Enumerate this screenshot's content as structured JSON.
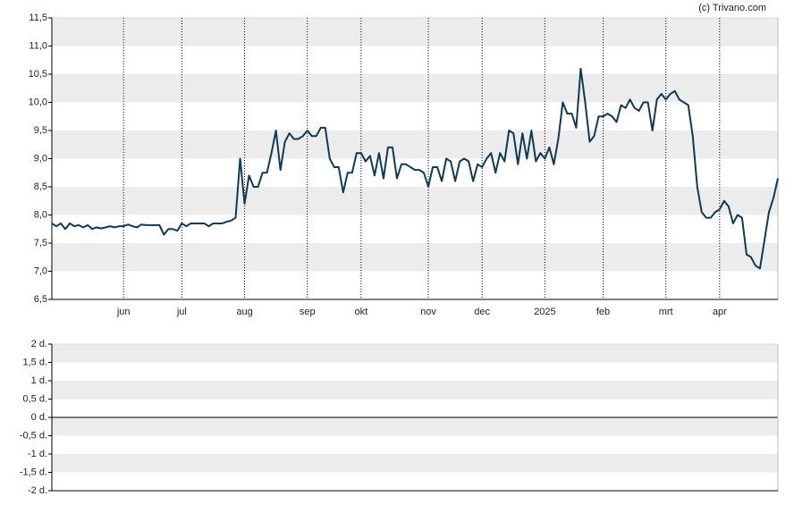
{
  "credit": "(c) Trivano.com",
  "chart_data": [
    {
      "type": "line",
      "color": "#0f3a55",
      "categories": [
        null,
        null,
        null,
        null,
        null,
        null,
        null,
        null,
        null,
        null,
        null,
        null,
        null,
        null,
        null,
        null,
        "jun",
        null,
        null,
        null,
        null,
        null,
        null,
        null,
        null,
        null,
        null,
        null,
        null,
        "jul",
        null,
        null,
        null,
        null,
        null,
        null,
        null,
        null,
        null,
        null,
        null,
        null,
        null,
        "aug",
        null,
        null,
        null,
        null,
        null,
        null,
        null,
        null,
        null,
        null,
        null,
        null,
        null,
        "sep",
        null,
        null,
        null,
        null,
        null,
        null,
        null,
        null,
        null,
        null,
        null,
        "okt",
        null,
        null,
        null,
        null,
        null,
        null,
        null,
        null,
        null,
        null,
        null,
        null,
        null,
        null,
        "nov",
        null,
        null,
        null,
        null,
        null,
        null,
        null,
        null,
        null,
        null,
        null,
        "dec",
        null,
        null,
        null,
        null,
        null,
        null,
        null,
        null,
        null,
        null,
        null,
        null,
        null,
        "2025",
        null,
        null,
        null,
        null,
        null,
        null,
        null,
        null,
        null,
        null,
        null,
        null,
        "feb",
        null,
        null,
        null,
        null,
        null,
        null,
        null,
        null,
        null,
        null,
        null,
        null,
        null,
        "mrt",
        null,
        null,
        null,
        null,
        null,
        null,
        null,
        null,
        null,
        null,
        null,
        "apr",
        null,
        null,
        null,
        null,
        null,
        null,
        null,
        null,
        null,
        null,
        null,
        null,
        null
      ],
      "values": [
        7.85,
        7.8,
        7.85,
        7.75,
        7.85,
        7.8,
        7.82,
        7.78,
        7.82,
        7.75,
        7.78,
        7.76,
        7.78,
        7.8,
        7.78,
        7.8,
        7.8,
        7.83,
        7.8,
        7.78,
        7.83,
        7.82,
        7.82,
        7.82,
        7.82,
        7.65,
        7.75,
        7.75,
        7.72,
        7.85,
        7.8,
        7.85,
        7.85,
        7.85,
        7.85,
        7.8,
        7.85,
        7.85,
        7.85,
        7.88,
        7.9,
        7.95,
        9.0,
        8.2,
        8.7,
        8.5,
        8.5,
        8.75,
        8.75,
        9.1,
        9.5,
        8.8,
        9.3,
        9.45,
        9.35,
        9.35,
        9.4,
        9.5,
        9.4,
        9.4,
        9.55,
        9.55,
        9.0,
        8.85,
        8.85,
        8.4,
        8.75,
        8.75,
        9.1,
        9.1,
        8.95,
        9.05,
        8.7,
        9.1,
        8.65,
        9.2,
        9.2,
        8.65,
        8.9,
        8.9,
        8.85,
        8.8,
        8.8,
        8.75,
        8.5,
        8.85,
        8.85,
        8.6,
        9.0,
        8.95,
        8.6,
        8.95,
        9.0,
        8.95,
        8.6,
        8.9,
        8.85,
        9.0,
        9.1,
        8.75,
        9.1,
        8.95,
        9.5,
        9.45,
        8.9,
        9.45,
        9.0,
        9.5,
        8.95,
        9.1,
        9.0,
        9.2,
        8.9,
        9.35,
        10.0,
        9.8,
        9.8,
        9.55,
        10.6,
        10.0,
        9.3,
        9.4,
        9.75,
        9.75,
        9.8,
        9.75,
        9.65,
        9.95,
        9.9,
        10.05,
        9.9,
        9.85,
        10.0,
        10.0,
        9.5,
        10.05,
        10.15,
        10.05,
        10.15,
        10.2,
        10.05,
        10.0,
        9.95,
        9.4,
        8.5,
        8.05,
        7.95,
        7.95,
        8.05,
        8.1,
        8.25,
        8.15,
        7.85,
        8.0,
        7.95,
        7.3,
        7.25,
        7.1,
        7.05,
        7.55,
        8.05,
        8.3,
        8.65
      ],
      "ylim": [
        6.5,
        11.5
      ],
      "yticks": [
        {
          "value": 6.5,
          "label": "6,5"
        },
        {
          "value": 7.0,
          "label": "7,0"
        },
        {
          "value": 7.5,
          "label": "7,5"
        },
        {
          "value": 8.0,
          "label": "8,0"
        },
        {
          "value": 8.5,
          "label": "8,5"
        },
        {
          "value": 9.0,
          "label": "9,0"
        },
        {
          "value": 9.5,
          "label": "9,5"
        },
        {
          "value": 10.0,
          "label": "10,0"
        },
        {
          "value": 10.5,
          "label": "10,5"
        },
        {
          "value": 11.0,
          "label": "11,0"
        },
        {
          "value": 11.5,
          "label": "11,5"
        }
      ],
      "grid": true
    },
    {
      "type": "bar",
      "ylim": [
        -2,
        2
      ],
      "yticks": [
        {
          "value": -2,
          "label": "-2 d."
        },
        {
          "value": -1.5,
          "label": "-1,5 d."
        },
        {
          "value": -1,
          "label": "-1 d."
        },
        {
          "value": -0.5,
          "label": "-0,5 d."
        },
        {
          "value": 0,
          "label": "0 d."
        },
        {
          "value": 0.5,
          "label": "0,5 d."
        },
        {
          "value": 1,
          "label": "1 d."
        },
        {
          "value": 1.5,
          "label": "1,5 d."
        },
        {
          "value": 2,
          "label": "2 d."
        }
      ],
      "grid": true
    }
  ]
}
